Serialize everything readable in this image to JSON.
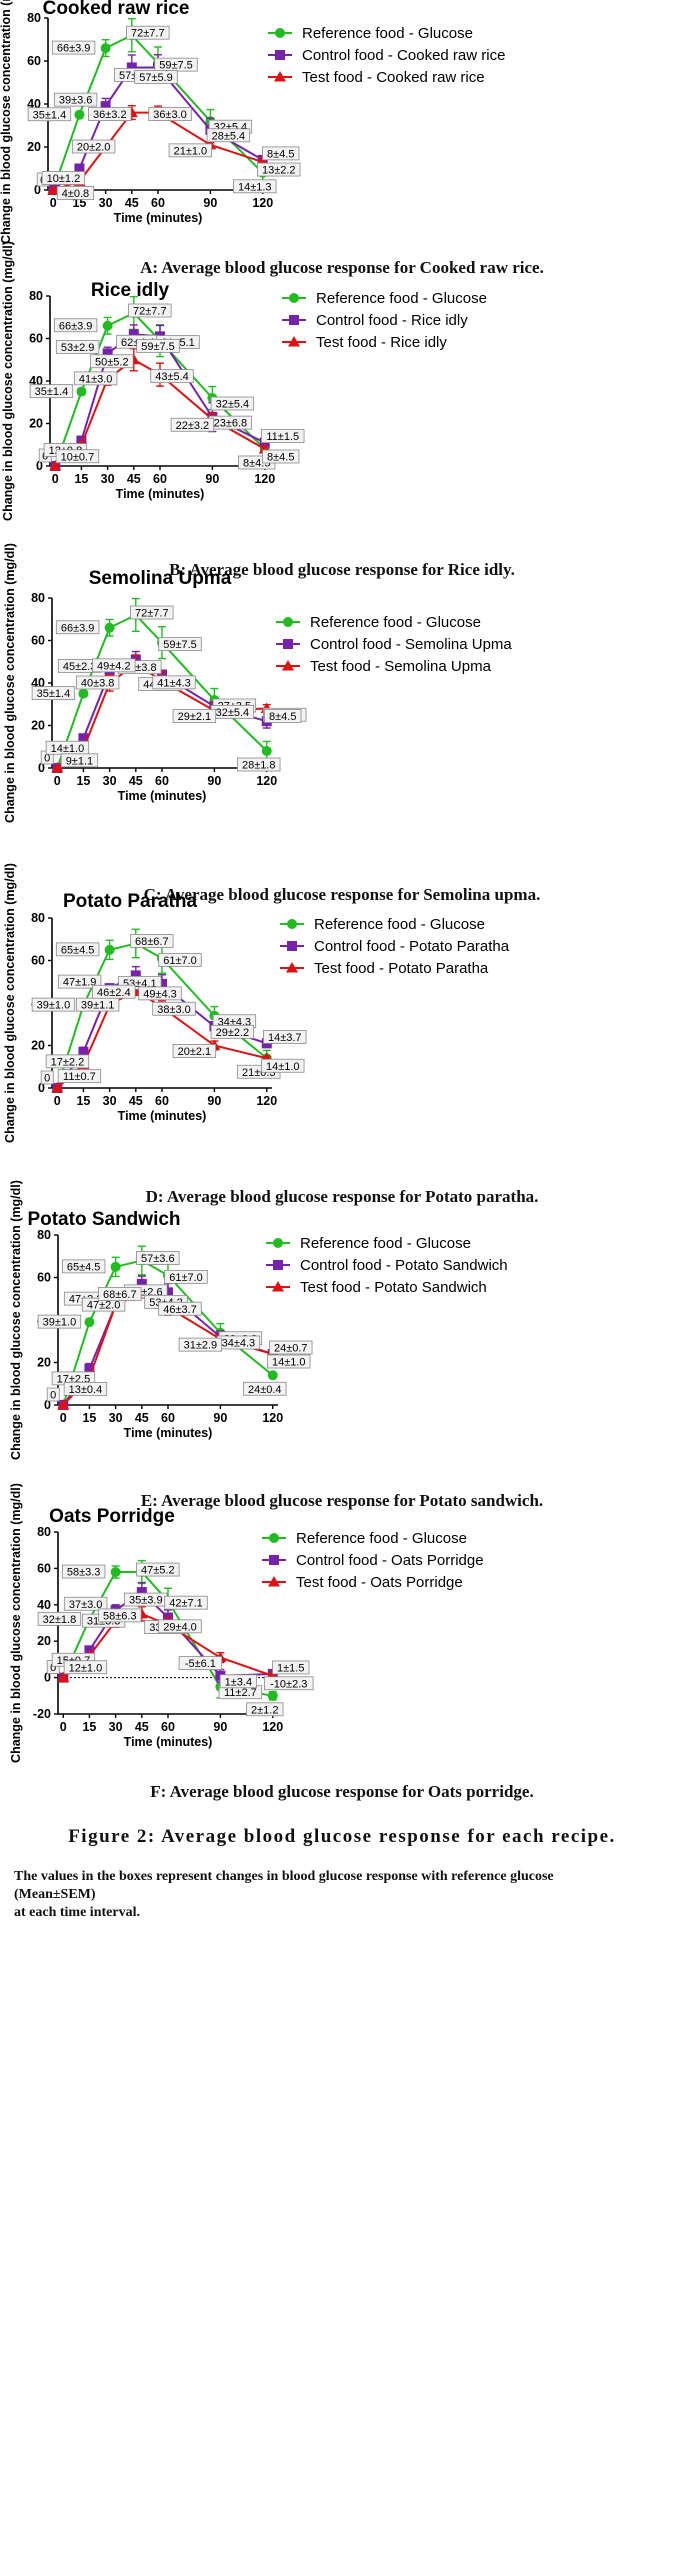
{
  "chart_data": [
    {
      "type": "line",
      "title": "Cooked raw rice",
      "xlabel": "Time (minutes)",
      "ylabel": "Change in blood glucose concentration (mg/dl)",
      "x": [
        0,
        15,
        30,
        45,
        60,
        90,
        120
      ],
      "ylim": [
        0,
        80
      ],
      "yticks": [
        0,
        20,
        40,
        60,
        80
      ],
      "caption": "A: Average blood glucose response for Cooked raw rice.",
      "series": [
        {
          "name": "Reference food - Glucose",
          "color": "#22bb22",
          "marker": "circle",
          "values": [
            0,
            35,
            66,
            72,
            59,
            32,
            8
          ],
          "errors": [
            0,
            1.4,
            3.9,
            7.7,
            7.5,
            5.4,
            4.5
          ]
        },
        {
          "name": "Control food - Cooked raw rice",
          "color": "#7722aa",
          "marker": "square",
          "values": [
            0,
            10,
            39,
            57,
            57,
            28,
            14
          ],
          "errors": [
            0,
            1.2,
            3.6,
            5.8,
            5.9,
            5.4,
            1.3
          ]
        },
        {
          "name": "Test food - Cooked raw rice",
          "color": "#dd1111",
          "marker": "triangle",
          "values": [
            0,
            4,
            20,
            36,
            36,
            21,
            13
          ],
          "errors": [
            0,
            0.8,
            2.0,
            3.2,
            3.0,
            1.0,
            2.2
          ]
        }
      ],
      "annotations": [
        "0",
        "35±1.4",
        "10±1.2",
        "4±0.8",
        "66±3.9",
        "39±3.6",
        "20±2.0",
        "72±7.7",
        "57±5.8",
        "36±3.2",
        "59±7.5",
        "57±5.9",
        "36±3.0",
        "32±5.4",
        "28±5.4",
        "21±1.0",
        "14±1.3",
        "8±4.5",
        "13±2.2"
      ]
    },
    {
      "type": "line",
      "title": "Rice idly",
      "xlabel": "Time (minutes)",
      "ylabel": "Change in blood glucose concentration (mg/dl)",
      "x": [
        0,
        15,
        30,
        45,
        60,
        90,
        120
      ],
      "ylim": [
        0,
        80
      ],
      "yticks": [
        0,
        20,
        40,
        60,
        80
      ],
      "caption": "B: Average blood glucose response for Rice idly.",
      "series": [
        {
          "name": "Reference food - Glucose",
          "color": "#22bb22",
          "marker": "circle",
          "values": [
            0,
            35,
            66,
            72,
            59,
            32,
            8
          ],
          "errors": [
            0,
            1.4,
            3.9,
            7.7,
            7.5,
            5.4,
            4.5
          ]
        },
        {
          "name": "Control food - Rice idly",
          "color": "#7722aa",
          "marker": "square",
          "values": [
            0,
            12,
            53,
            62,
            61,
            23,
            11
          ],
          "errors": [
            0,
            0.8,
            2.9,
            4.4,
            5.1,
            6.8,
            1.5
          ]
        },
        {
          "name": "Test food - Rice idly",
          "color": "#dd1111",
          "marker": "triangle",
          "values": [
            0,
            10,
            41,
            50,
            43,
            22,
            8
          ],
          "errors": [
            0,
            0.7,
            3.0,
            5.2,
            5.4,
            3.2,
            4.5
          ]
        }
      ],
      "annotations": [
        "0",
        "35±1.4",
        "12±0.8",
        "10±0.7",
        "66±3.9",
        "53±2.9",
        "41±3.0",
        "72±7.7",
        "62±4.4",
        "50±5.2",
        "61±5.1",
        "59±7.5",
        "43±5.4",
        "32±5.4",
        "23±6.8",
        "22±3.2",
        "8±4.5",
        "11±1.5",
        "8±4.5"
      ]
    },
    {
      "type": "line",
      "title": "Semolina Upma",
      "xlabel": "Time (minutes)",
      "ylabel": "Change in blood glucose concentration (mg/dl)",
      "x": [
        0,
        15,
        30,
        45,
        60,
        90,
        120
      ],
      "ylim": [
        0,
        80
      ],
      "yticks": [
        0,
        20,
        40,
        60,
        80
      ],
      "caption": "C: Average blood glucose response for Semolina upma.",
      "series": [
        {
          "name": "Reference food - Glucose",
          "color": "#22bb22",
          "marker": "circle",
          "values": [
            0,
            35,
            66,
            72,
            59,
            32,
            8
          ],
          "errors": [
            0,
            1.4,
            3.9,
            7.7,
            7.5,
            5.4,
            4.5
          ]
        },
        {
          "name": "Control food - Semolina Upma",
          "color": "#7722aa",
          "marker": "square",
          "values": [
            0,
            14,
            45,
            51,
            44,
            29,
            22
          ],
          "errors": [
            0,
            1.0,
            2.3,
            3.8,
            1.1,
            2.1,
            3.2
          ]
        },
        {
          "name": "Test food - Semolina Upma",
          "color": "#dd1111",
          "marker": "triangle",
          "values": [
            0,
            9,
            40,
            49,
            41,
            27,
            28
          ],
          "errors": [
            0,
            1.1,
            3.8,
            4.2,
            4.3,
            3.5,
            1.8
          ]
        }
      ],
      "annotations": [
        "0",
        "35±1.4",
        "14±1.0",
        "9±1.1",
        "66±3.9",
        "45±2.3",
        "40±3.8",
        "72±7.7",
        "51±3.8",
        "49±4.2",
        "59±7.5",
        "44±1.1",
        "41±4.3",
        "27±3.5",
        "32±5.4",
        "29±2.1",
        "28±1.8",
        "22±3.2",
        "8±4.5"
      ]
    },
    {
      "type": "line",
      "title": "Potato Paratha",
      "xlabel": "Time (minutes)",
      "ylabel": "Change in blood glucose concentration (mg/dl)",
      "x": [
        0,
        15,
        30,
        45,
        60,
        90,
        120
      ],
      "ylim": [
        0,
        80
      ],
      "yticks": [
        0,
        20,
        40,
        60,
        80
      ],
      "caption": "D: Average blood glucose response for Potato paratha.",
      "series": [
        {
          "name": "Reference food - Glucose",
          "color": "#22bb22",
          "marker": "circle",
          "values": [
            0,
            39,
            65,
            68,
            61,
            34,
            14
          ],
          "errors": [
            0,
            1.0,
            4.5,
            6.7,
            7.0,
            4.3,
            3.7
          ]
        },
        {
          "name": "Control food - Potato Paratha",
          "color": "#7722aa",
          "marker": "square",
          "values": [
            0,
            17,
            47,
            53,
            49,
            29,
            21
          ],
          "errors": [
            0,
            2.2,
            1.9,
            4.1,
            4.3,
            2.2,
            0.3
          ]
        },
        {
          "name": "Test food - Potato Paratha",
          "color": "#dd1111",
          "marker": "triangle",
          "values": [
            0,
            11,
            39,
            46,
            38,
            20,
            14
          ],
          "errors": [
            0,
            0.7,
            1.1,
            2.4,
            3.0,
            2.1,
            1.0
          ]
        }
      ],
      "annotations": [
        "0",
        "39±1.0",
        "17±2.2",
        "11±0.7",
        "65±4.5",
        "47±1.9",
        "39±1.1",
        "68±6.7",
        "53±4.1",
        "46±2.4",
        "61±7.0",
        "49±4.3",
        "38±3.0",
        "34±4.3",
        "29±2.2",
        "20±2.1",
        "21±0.3",
        "14±3.7",
        "14±1.0"
      ]
    },
    {
      "type": "line",
      "title": "Potato Sandwich",
      "xlabel": "Time (minutes)",
      "ylabel": "Change in blood glucose concentration (mg/dl)",
      "x": [
        0,
        15,
        30,
        45,
        60,
        90,
        120
      ],
      "ylim": [
        0,
        80
      ],
      "yticks": [
        0,
        20,
        40,
        60,
        80
      ],
      "caption": "E: Average blood glucose response for Potato sandwich.",
      "series": [
        {
          "name": "Reference food - Glucose",
          "color": "#22bb22",
          "marker": "circle",
          "values": [
            0,
            39,
            65,
            68,
            61,
            34,
            14
          ],
          "errors": [
            0,
            1.0,
            4.5,
            6.7,
            7.0,
            4.3,
            1.0
          ]
        },
        {
          "name": "Control food - Potato Sandwich",
          "color": "#7722aa",
          "marker": "square",
          "values": [
            0,
            17,
            47,
            57,
            53,
            32,
            24
          ],
          "errors": [
            0,
            2.5,
            2.2,
            3.6,
            4.2,
            2.8,
            0.4
          ]
        },
        {
          "name": "Test food - Potato Sandwich",
          "color": "#dd1111",
          "marker": "triangle",
          "values": [
            0,
            13,
            47,
            53,
            46,
            31,
            24
          ],
          "errors": [
            0,
            0.4,
            2.0,
            2.6,
            3.7,
            2.9,
            0.7
          ]
        }
      ],
      "annotations": [
        "0",
        "39±1.0",
        "17±2.5",
        "13±0.4",
        "65±4.5",
        "47±2.2",
        "47±2.0",
        "57±3.6",
        "53±2.6",
        "68±6.7",
        "61±7.0",
        "53±4.2",
        "46±3.7",
        "32±2.8",
        "34±4.3",
        "31±2.9",
        "24±0.4",
        "24±0.7",
        "14±1.0"
      ]
    },
    {
      "type": "line",
      "title": "Oats Porridge",
      "xlabel": "Time (minutes)",
      "ylabel": "Change in blood glucose concentration (mg/dl)",
      "x": [
        0,
        15,
        30,
        45,
        60,
        90,
        120
      ],
      "ylim": [
        -20,
        80
      ],
      "yticks": [
        -20,
        0,
        20,
        40,
        60,
        80
      ],
      "caption": "F:  Average blood glucose response for Oats porridge.",
      "series": [
        {
          "name": "Reference food - Glucose",
          "color": "#22bb22",
          "marker": "circle",
          "values": [
            0,
            32,
            58,
            58,
            42,
            -5,
            -10
          ],
          "errors": [
            0,
            1.8,
            3.3,
            6.3,
            7.1,
            6.1,
            2.3
          ]
        },
        {
          "name": "Control food - Oats Porridge",
          "color": "#7722aa",
          "marker": "square",
          "values": [
            0,
            15,
            37,
            47,
            33,
            1,
            2
          ],
          "errors": [
            0,
            0.7,
            3.0,
            5.2,
            4.2,
            3.4,
            1.2
          ]
        },
        {
          "name": "Test food - Oats Porridge",
          "color": "#dd1111",
          "marker": "triangle",
          "values": [
            0,
            12,
            31,
            35,
            29,
            11,
            1
          ],
          "errors": [
            0,
            1.0,
            3.3,
            3.9,
            4.0,
            2.7,
            1.5
          ]
        }
      ],
      "annotations": [
        "0",
        "32±1.8",
        "15±0.7",
        "12±1.0",
        "58±3.3",
        "37±3.0",
        "31±3.3",
        "47±5.2",
        "35±3.9",
        "58±6.3",
        "42±7.1",
        "33±4.2",
        "29±4.0",
        "11±2.7",
        "1±3.4",
        "-5±6.1",
        "2±1.2",
        "1±1.5",
        "-10±2.3"
      ]
    }
  ],
  "figure_caption": "Figure 2: Average blood glucose response for each recipe.",
  "footnote_line1": "The values in the boxes represent changes in blood glucose response with reference glucose (Mean±SEM)",
  "footnote_line2": "at each time interval."
}
